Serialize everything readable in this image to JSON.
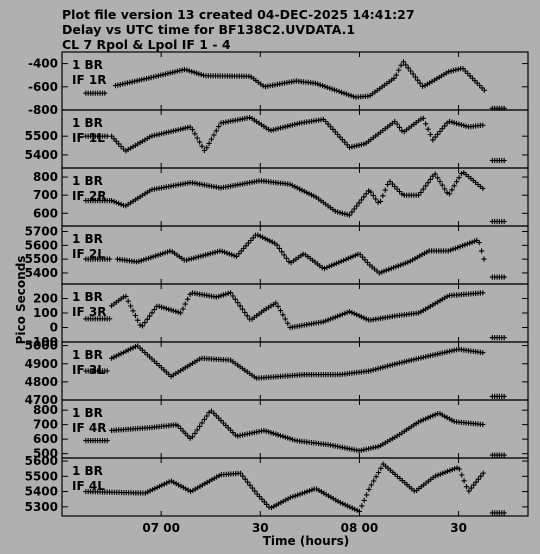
{
  "header": {
    "line1": "Plot file version 13  created 04-DEC-2025 14:41:27",
    "line2": "Delay vs UTC time for BF138C2.UVDATA.1",
    "line3": "CL 7  Rpol & Lpol  IF 1 - 4"
  },
  "chart_data": {
    "type": "scatter",
    "ylabel": "Pico Seconds",
    "xlabel": "Time (hours)",
    "xlim": [
      6.5,
      8.85
    ],
    "x_ticks": [
      {
        "value": 7.0,
        "label": "07 00"
      },
      {
        "value": 7.5,
        "label": "30"
      },
      {
        "value": 8.0,
        "label": "08 00"
      },
      {
        "value": 8.5,
        "label": "30"
      }
    ],
    "marker": "plus",
    "panels": [
      {
        "label1": "1 BR",
        "label2": "IF 1R",
        "ylim": [
          -800,
          -300
        ],
        "yticks": [
          -800,
          -600,
          -400
        ],
        "ticklabels": [
          "-800",
          "-600",
          "-400"
        ],
        "segments": [
          {
            "t0": 6.62,
            "t1": 6.72,
            "pts": [
              [
                6.62,
                -655
              ],
              [
                6.72,
                -655
              ]
            ]
          },
          {
            "t0": 6.77,
            "t1": 8.63,
            "pts": [
              [
                6.77,
                -590
              ],
              [
                6.95,
                -520
              ],
              [
                7.12,
                -450
              ],
              [
                7.22,
                -505
              ],
              [
                7.45,
                -510
              ],
              [
                7.52,
                -600
              ],
              [
                7.68,
                -550
              ],
              [
                7.78,
                -570
              ],
              [
                7.98,
                -690
              ],
              [
                8.05,
                -680
              ],
              [
                8.18,
                -520
              ],
              [
                8.22,
                -380
              ],
              [
                8.32,
                -600
              ],
              [
                8.45,
                -470
              ],
              [
                8.52,
                -440
              ],
              [
                8.63,
                -630
              ]
            ]
          },
          {
            "t0": 8.67,
            "t1": 8.74,
            "pts": [
              [
                8.67,
                -785
              ],
              [
                8.74,
                -785
              ]
            ]
          }
        ]
      },
      {
        "label1": "1 BR",
        "label2": "IF 1L",
        "ylim": [
          5330,
          5640
        ],
        "yticks": [
          5400,
          5500
        ],
        "ticklabels": [
          "5400",
          "5500"
        ],
        "segments": [
          {
            "t0": 6.62,
            "t1": 6.73,
            "pts": [
              [
                6.62,
                5500
              ],
              [
                6.73,
                5500
              ]
            ]
          },
          {
            "t0": 6.75,
            "t1": 8.63,
            "pts": [
              [
                6.75,
                5500
              ],
              [
                6.82,
                5420
              ],
              [
                6.95,
                5500
              ],
              [
                7.15,
                5550
              ],
              [
                7.22,
                5420
              ],
              [
                7.3,
                5570
              ],
              [
                7.45,
                5600
              ],
              [
                7.55,
                5530
              ],
              [
                7.7,
                5570
              ],
              [
                7.82,
                5590
              ],
              [
                7.95,
                5440
              ],
              [
                8.03,
                5460
              ],
              [
                8.18,
                5580
              ],
              [
                8.22,
                5520
              ],
              [
                8.32,
                5600
              ],
              [
                8.37,
                5480
              ],
              [
                8.45,
                5580
              ],
              [
                8.55,
                5550
              ],
              [
                8.63,
                5560
              ]
            ]
          },
          {
            "t0": 8.67,
            "t1": 8.74,
            "pts": [
              [
                8.67,
                5370
              ],
              [
                8.74,
                5370
              ]
            ]
          }
        ]
      },
      {
        "label1": "1 BR",
        "label2": "IF 2R",
        "ylim": [
          530,
          850
        ],
        "yticks": [
          600,
          700,
          800
        ],
        "ticklabels": [
          "600",
          "700",
          "800"
        ],
        "segments": [
          {
            "t0": 6.62,
            "t1": 6.74,
            "pts": [
              [
                6.62,
                670
              ],
              [
                6.74,
                670
              ]
            ]
          },
          {
            "t0": 6.75,
            "t1": 8.63,
            "pts": [
              [
                6.75,
                670
              ],
              [
                6.82,
                640
              ],
              [
                6.95,
                730
              ],
              [
                7.15,
                770
              ],
              [
                7.3,
                740
              ],
              [
                7.5,
                780
              ],
              [
                7.65,
                760
              ],
              [
                7.78,
                690
              ],
              [
                7.88,
                610
              ],
              [
                7.95,
                590
              ],
              [
                8.05,
                730
              ],
              [
                8.1,
                650
              ],
              [
                8.15,
                780
              ],
              [
                8.22,
                700
              ],
              [
                8.3,
                700
              ],
              [
                8.38,
                820
              ],
              [
                8.45,
                700
              ],
              [
                8.52,
                830
              ],
              [
                8.63,
                730
              ]
            ]
          },
          {
            "t0": 8.67,
            "t1": 8.74,
            "pts": [
              [
                8.67,
                555
              ],
              [
                8.74,
                555
              ]
            ]
          }
        ]
      },
      {
        "label1": "1 BR",
        "label2": "IF 2L",
        "ylim": [
          5320,
          5740
        ],
        "yticks": [
          5400,
          5500,
          5600,
          5700
        ],
        "ticklabels": [
          "5400",
          "5500",
          "5600",
          "5700"
        ],
        "segments": [
          {
            "t0": 6.62,
            "t1": 6.75,
            "pts": [
              [
                6.62,
                5500
              ],
              [
                6.75,
                5500
              ]
            ]
          },
          {
            "t0": 6.78,
            "t1": 8.63,
            "pts": [
              [
                6.78,
                5500
              ],
              [
                6.88,
                5480
              ],
              [
                7.05,
                5560
              ],
              [
                7.12,
                5490
              ],
              [
                7.3,
                5560
              ],
              [
                7.38,
                5520
              ],
              [
                7.48,
                5680
              ],
              [
                7.58,
                5610
              ],
              [
                7.65,
                5470
              ],
              [
                7.72,
                5540
              ],
              [
                7.82,
                5430
              ],
              [
                8.0,
                5540
              ],
              [
                8.05,
                5460
              ],
              [
                8.1,
                5400
              ],
              [
                8.25,
                5480
              ],
              [
                8.35,
                5560
              ],
              [
                8.45,
                5560
              ],
              [
                8.6,
                5640
              ],
              [
                8.63,
                5490
              ]
            ]
          },
          {
            "t0": 8.67,
            "t1": 8.74,
            "pts": [
              [
                8.67,
                5370
              ],
              [
                8.74,
                5370
              ]
            ]
          }
        ]
      },
      {
        "label1": "1 BR",
        "label2": "IF 3R",
        "ylim": [
          -100,
          300
        ],
        "yticks": [
          -100,
          0,
          100,
          200
        ],
        "ticklabels": [
          "-100",
          "0",
          "100",
          "200"
        ],
        "segments": [
          {
            "t0": 6.62,
            "t1": 6.74,
            "pts": [
              [
                6.62,
                60
              ],
              [
                6.74,
                60
              ]
            ]
          },
          {
            "t0": 6.75,
            "t1": 8.63,
            "pts": [
              [
                6.75,
                150
              ],
              [
                6.82,
                220
              ],
              [
                6.9,
                0
              ],
              [
                6.98,
                150
              ],
              [
                7.1,
                100
              ],
              [
                7.15,
                240
              ],
              [
                7.28,
                210
              ],
              [
                7.35,
                240
              ],
              [
                7.45,
                50
              ],
              [
                7.52,
                120
              ],
              [
                7.58,
                170
              ],
              [
                7.65,
                0
              ],
              [
                7.82,
                40
              ],
              [
                7.95,
                110
              ],
              [
                8.05,
                50
              ],
              [
                8.18,
                80
              ],
              [
                8.3,
                100
              ],
              [
                8.45,
                220
              ],
              [
                8.63,
                240
              ]
            ]
          },
          {
            "t0": 8.67,
            "t1": 8.74,
            "pts": [
              [
                8.67,
                -70
              ],
              [
                8.74,
                -70
              ]
            ]
          }
        ]
      },
      {
        "label1": "1 BR",
        "label2": "IF 3L",
        "ylim": [
          4700,
          5020
        ],
        "yticks": [
          4700,
          4800,
          4900,
          5000
        ],
        "ticklabels": [
          "4700",
          "4800",
          "4900",
          "5000"
        ],
        "segments": [
          {
            "t0": 6.62,
            "t1": 6.73,
            "pts": [
              [
                6.62,
                4860
              ],
              [
                6.73,
                4860
              ]
            ]
          },
          {
            "t0": 6.75,
            "t1": 8.63,
            "pts": [
              [
                6.75,
                4930
              ],
              [
                6.88,
                5000
              ],
              [
                7.05,
                4830
              ],
              [
                7.2,
                4930
              ],
              [
                7.35,
                4920
              ],
              [
                7.48,
                4820
              ],
              [
                7.6,
                4830
              ],
              [
                7.72,
                4840
              ],
              [
                7.9,
                4840
              ],
              [
                8.05,
                4860
              ],
              [
                8.15,
                4890
              ],
              [
                8.3,
                4930
              ],
              [
                8.5,
                4980
              ],
              [
                8.63,
                4960
              ]
            ]
          },
          {
            "t0": 8.67,
            "t1": 8.74,
            "pts": [
              [
                8.67,
                4720
              ],
              [
                8.74,
                4720
              ]
            ]
          }
        ]
      },
      {
        "label1": "1 BR",
        "label2": "IF 4R",
        "ylim": [
          470,
          870
        ],
        "yticks": [
          500,
          600,
          700,
          800
        ],
        "ticklabels": [
          "500",
          "600",
          "700",
          "800"
        ],
        "segments": [
          {
            "t0": 6.62,
            "t1": 6.73,
            "pts": [
              [
                6.62,
                590
              ],
              [
                6.73,
                590
              ]
            ]
          },
          {
            "t0": 6.75,
            "t1": 8.63,
            "pts": [
              [
                6.75,
                660
              ],
              [
                6.95,
                680
              ],
              [
                7.08,
                700
              ],
              [
                7.15,
                600
              ],
              [
                7.25,
                800
              ],
              [
                7.38,
                620
              ],
              [
                7.52,
                660
              ],
              [
                7.68,
                590
              ],
              [
                7.85,
                560
              ],
              [
                8.0,
                520
              ],
              [
                8.1,
                550
              ],
              [
                8.2,
                630
              ],
              [
                8.3,
                720
              ],
              [
                8.4,
                780
              ],
              [
                8.48,
                720
              ],
              [
                8.63,
                700
              ]
            ]
          },
          {
            "t0": 8.67,
            "t1": 8.74,
            "pts": [
              [
                8.67,
                490
              ],
              [
                8.74,
                490
              ]
            ]
          }
        ]
      },
      {
        "label1": "1 BR",
        "label2": "IF 4L",
        "ylim": [
          5240,
          5620
        ],
        "yticks": [
          5300,
          5400,
          5500,
          5600
        ],
        "ticklabels": [
          "5300",
          "5400",
          "5500",
          "5600"
        ],
        "segments": [
          {
            "t0": 6.62,
            "t1": 8.63,
            "pts": [
              [
                6.62,
                5400
              ],
              [
                6.92,
                5390
              ],
              [
                7.05,
                5470
              ],
              [
                7.15,
                5400
              ],
              [
                7.3,
                5510
              ],
              [
                7.4,
                5520
              ],
              [
                7.48,
                5390
              ],
              [
                7.55,
                5290
              ],
              [
                7.65,
                5360
              ],
              [
                7.78,
                5420
              ],
              [
                7.9,
                5330
              ],
              [
                8.0,
                5270
              ],
              [
                8.05,
                5420
              ],
              [
                8.12,
                5580
              ],
              [
                8.28,
                5400
              ],
              [
                8.38,
                5500
              ],
              [
                8.5,
                5560
              ],
              [
                8.55,
                5400
              ],
              [
                8.63,
                5530
              ]
            ]
          },
          {
            "t0": 8.67,
            "t1": 8.74,
            "pts": [
              [
                8.67,
                5260
              ],
              [
                8.74,
                5260
              ]
            ]
          }
        ]
      }
    ]
  }
}
